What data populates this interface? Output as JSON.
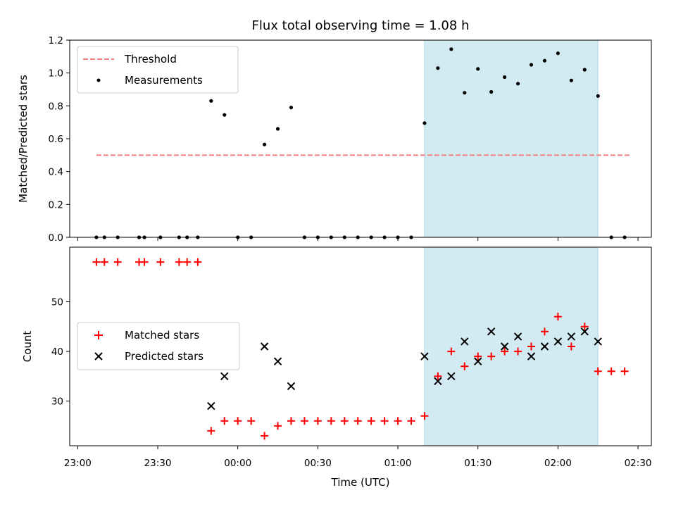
{
  "chart_data": [
    {
      "type": "scatter",
      "title": "Flux total observing time = 1.08 h",
      "xlabel": "",
      "ylabel": "Matched/Predicted stars",
      "xlim_minutes_from_2300": [
        -3,
        215
      ],
      "ylim": [
        0,
        1.2
      ],
      "yticks": [
        0.0,
        0.2,
        0.4,
        0.6,
        0.8,
        1.0,
        1.2
      ],
      "ytick_labels": [
        "0.0",
        "0.2",
        "0.4",
        "0.6",
        "0.8",
        "1.0",
        "1.2"
      ],
      "x_time_utc": [
        "23:10",
        "23:15",
        "23:20",
        "23:25",
        "23:30",
        "23:35",
        "23:40",
        "23:45",
        "23:50",
        "23:55",
        "00:00",
        "00:05",
        "00:10",
        "00:15",
        "00:20",
        "00:25",
        "00:30",
        "00:35",
        "00:40",
        "00:45",
        "00:50",
        "00:55",
        "01:00",
        "01:05",
        "01:10",
        "01:15",
        "01:20",
        "01:25",
        "01:30",
        "01:35",
        "01:40",
        "01:45",
        "01:50",
        "01:55",
        "02:00",
        "02:05",
        "02:10",
        "02:15",
        "02:20",
        "02:25"
      ],
      "threshold": {
        "name": "Threshold",
        "value": 0.5,
        "x_start": "23:07",
        "x_end": "02:27",
        "color": "#f08080",
        "style": "dashed"
      },
      "series": [
        {
          "name": "Measurements",
          "marker": "dot",
          "color": "#000000",
          "points": [
            [
              "23:07",
              0
            ],
            [
              "23:10",
              0
            ],
            [
              "23:15",
              0
            ],
            [
              "23:23",
              0
            ],
            [
              "23:25",
              0
            ],
            [
              "23:31",
              0
            ],
            [
              "23:38",
              0
            ],
            [
              "23:41",
              0
            ],
            [
              "23:45",
              0
            ],
            [
              "23:50",
              0.83
            ],
            [
              "23:55",
              0.745
            ],
            [
              "00:00",
              0
            ],
            [
              "00:05",
              0
            ],
            [
              "00:10",
              0.565
            ],
            [
              "00:15",
              0.66
            ],
            [
              "00:20",
              0.79
            ],
            [
              "00:25",
              0
            ],
            [
              "00:30",
              0
            ],
            [
              "00:35",
              0
            ],
            [
              "00:40",
              0
            ],
            [
              "00:45",
              0
            ],
            [
              "00:50",
              0
            ],
            [
              "00:55",
              0
            ],
            [
              "01:00",
              0
            ],
            [
              "01:05",
              0
            ],
            [
              "01:10",
              0.695
            ],
            [
              "01:15",
              1.03
            ],
            [
              "01:20",
              1.145
            ],
            [
              "01:25",
              0.88
            ],
            [
              "01:30",
              1.025
            ],
            [
              "01:35",
              0.885
            ],
            [
              "01:40",
              0.975
            ],
            [
              "01:45",
              0.935
            ],
            [
              "01:50",
              1.05
            ],
            [
              "01:55",
              1.075
            ],
            [
              "02:00",
              1.12
            ],
            [
              "02:05",
              0.955
            ],
            [
              "02:10",
              1.02
            ],
            [
              "02:15",
              0.86
            ],
            [
              "02:20",
              0
            ],
            [
              "02:25",
              0
            ]
          ]
        }
      ],
      "highlight_span": {
        "x_start": "01:10",
        "x_end": "02:15",
        "color": "#add8e6"
      },
      "legend": {
        "placement": "upper-left",
        "entries": [
          "Threshold",
          "Measurements"
        ]
      }
    },
    {
      "type": "scatter",
      "title": "",
      "xlabel": "Time (UTC)",
      "ylabel": "Count",
      "xlim_minutes_from_2300": [
        -3,
        215
      ],
      "ylim": [
        21,
        61
      ],
      "yticks": [
        30,
        40,
        50
      ],
      "ytick_labels": [
        "30",
        "40",
        "50"
      ],
      "xticks": [
        "23:00",
        "23:30",
        "00:00",
        "00:30",
        "01:00",
        "01:30",
        "02:00",
        "02:30"
      ],
      "series": [
        {
          "name": "Matched stars",
          "marker": "plus",
          "color": "#ff0000",
          "points": [
            [
              "23:07",
              58
            ],
            [
              "23:10",
              58
            ],
            [
              "23:15",
              58
            ],
            [
              "23:23",
              58
            ],
            [
              "23:25",
              58
            ],
            [
              "23:31",
              58
            ],
            [
              "23:38",
              58
            ],
            [
              "23:41",
              58
            ],
            [
              "23:45",
              58
            ],
            [
              "23:50",
              24
            ],
            [
              "23:55",
              26
            ],
            [
              "00:00",
              26
            ],
            [
              "00:05",
              26
            ],
            [
              "00:10",
              23
            ],
            [
              "00:15",
              25
            ],
            [
              "00:20",
              26
            ],
            [
              "00:25",
              26
            ],
            [
              "00:30",
              26
            ],
            [
              "00:35",
              26
            ],
            [
              "00:40",
              26
            ],
            [
              "00:45",
              26
            ],
            [
              "00:50",
              26
            ],
            [
              "00:55",
              26
            ],
            [
              "01:00",
              26
            ],
            [
              "01:05",
              26
            ],
            [
              "01:10",
              27
            ],
            [
              "01:15",
              35
            ],
            [
              "01:20",
              40
            ],
            [
              "01:25",
              37
            ],
            [
              "01:30",
              39
            ],
            [
              "01:35",
              39
            ],
            [
              "01:40",
              40
            ],
            [
              "01:45",
              40
            ],
            [
              "01:50",
              41
            ],
            [
              "01:55",
              44
            ],
            [
              "02:00",
              47
            ],
            [
              "02:05",
              41
            ],
            [
              "02:10",
              45
            ],
            [
              "02:15",
              36
            ],
            [
              "02:20",
              36
            ],
            [
              "02:25",
              36
            ]
          ]
        },
        {
          "name": "Predicted stars",
          "marker": "x",
          "color": "#000000",
          "points": [
            [
              "23:50",
              29
            ],
            [
              "23:55",
              35
            ],
            [
              "00:10",
              41
            ],
            [
              "00:15",
              38
            ],
            [
              "00:20",
              33
            ],
            [
              "01:10",
              39
            ],
            [
              "01:15",
              34
            ],
            [
              "01:20",
              35
            ],
            [
              "01:25",
              42
            ],
            [
              "01:30",
              38
            ],
            [
              "01:35",
              44
            ],
            [
              "01:40",
              41
            ],
            [
              "01:45",
              43
            ],
            [
              "01:50",
              39
            ],
            [
              "01:55",
              41
            ],
            [
              "02:00",
              42
            ],
            [
              "02:05",
              43
            ],
            [
              "02:10",
              44
            ],
            [
              "02:15",
              42
            ]
          ]
        }
      ],
      "highlight_span": {
        "x_start": "01:10",
        "x_end": "02:15",
        "color": "#add8e6"
      },
      "legend": {
        "placement": "center-left",
        "entries": [
          "Matched stars",
          "Predicted stars"
        ]
      }
    }
  ]
}
